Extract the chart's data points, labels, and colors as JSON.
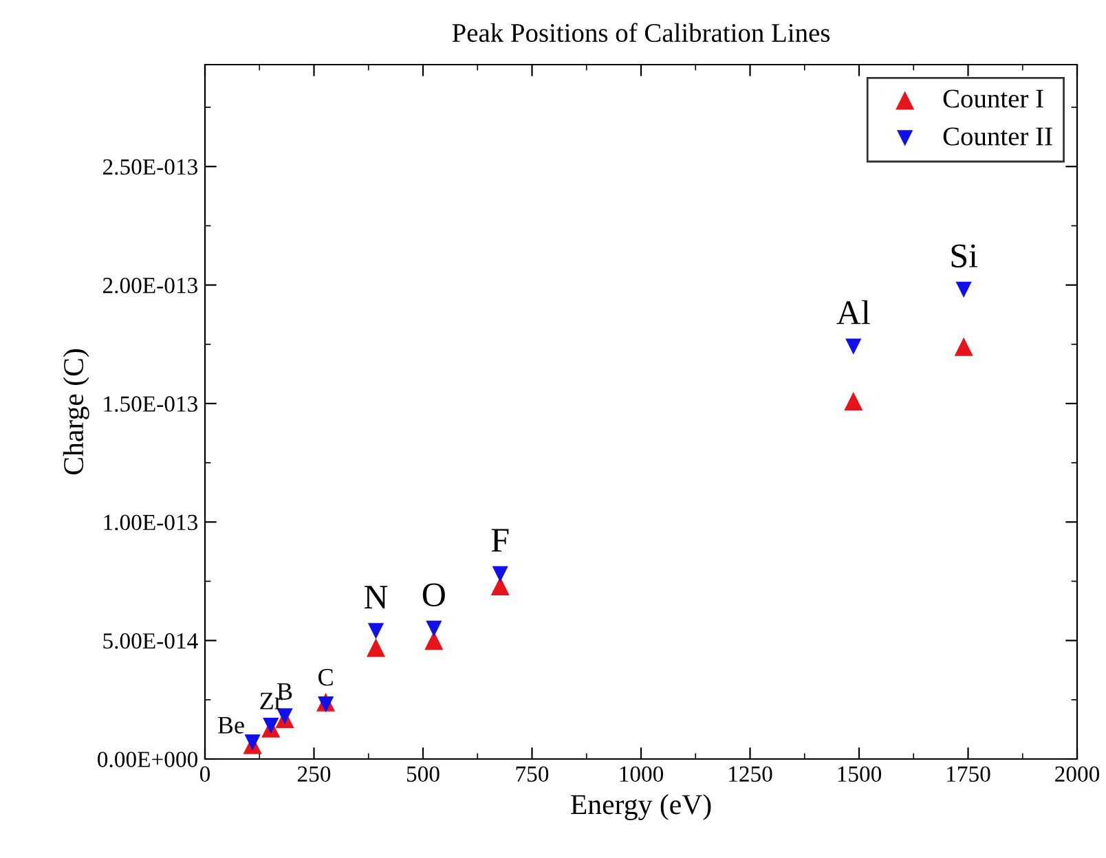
{
  "chart_data": {
    "type": "scatter",
    "title": "Peak Positions of Calibration Lines",
    "xlabel": "Energy (eV)",
    "ylabel": "Charge (C)",
    "x": [
      109,
      151,
      183,
      277,
      392,
      525,
      677,
      1487,
      1740
    ],
    "series": [
      {
        "name": "Counter I",
        "color": "#e8141c",
        "marker": "triangle",
        "values": [
          6e-15,
          1.3e-14,
          1.7e-14,
          2.4e-14,
          4.7e-14,
          5e-14,
          7.3e-14,
          1.51e-13,
          1.74e-13
        ]
      },
      {
        "name": "Counter II",
        "color": "#1010e8",
        "marker": "triangle_down",
        "values": [
          7e-15,
          1.4e-14,
          1.8e-14,
          2.3e-14,
          5.4e-14,
          5.5e-14,
          7.8e-14,
          1.74e-13,
          1.98e-13
        ]
      }
    ],
    "annotations": [
      {
        "text": "Be",
        "x": 109,
        "y": 7e-15
      },
      {
        "text": "Zr",
        "x": 151,
        "y": 1.4e-14
      },
      {
        "text": "B",
        "x": 183,
        "y": 1.8e-14
      },
      {
        "text": "C",
        "x": 277,
        "y": 2.4e-14
      },
      {
        "text": "N",
        "x": 392,
        "y": 5.4e-14
      },
      {
        "text": "O",
        "x": 525,
        "y": 5.5e-14
      },
      {
        "text": "F",
        "x": 677,
        "y": 7.8e-14
      },
      {
        "text": "Al",
        "x": 1487,
        "y": 1.74e-13
      },
      {
        "text": "Si",
        "x": 1740,
        "y": 1.98e-13
      }
    ],
    "xlim": [
      0,
      2000
    ],
    "xticks": [
      0,
      250,
      500,
      750,
      1000,
      1250,
      1500,
      1750,
      2000
    ],
    "ylim": [
      0,
      2.93e-13
    ],
    "yticks": [
      {
        "value": 0,
        "label": "0.00E+000"
      },
      {
        "value": 5e-14,
        "label": "5.00E-014"
      },
      {
        "value": 1e-13,
        "label": "1.00E-013"
      },
      {
        "value": 1.5e-13,
        "label": "1.50E-013"
      },
      {
        "value": 2e-13,
        "label": "2.00E-013"
      },
      {
        "value": 2.5e-13,
        "label": "2.50E-013"
      }
    ],
    "legend": "top right",
    "grid": false
  }
}
